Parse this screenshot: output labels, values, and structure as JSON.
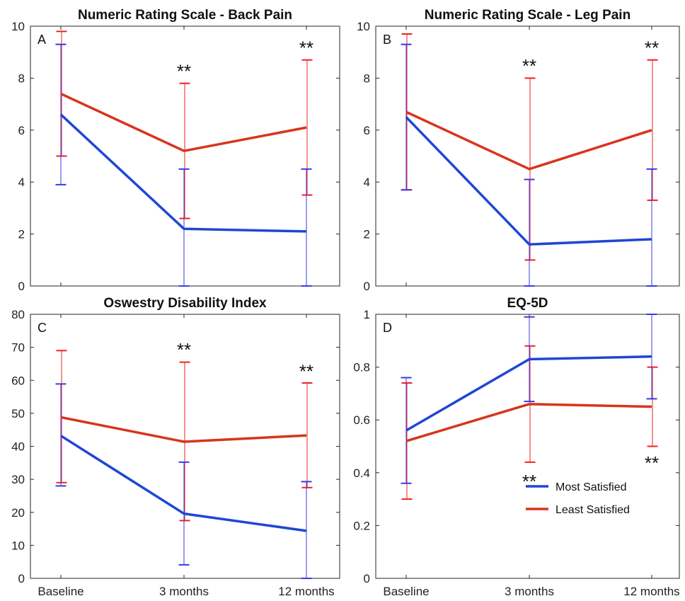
{
  "colors": {
    "most": "#1f47d4",
    "least": "#d8341c",
    "errMost": "#3a3ae8",
    "errLeast": "#ee2222"
  },
  "legend": {
    "most": "Most Satisfied",
    "least": "Least Satisfied",
    "position": "lower-right of panel D"
  },
  "chart_data": [
    {
      "type": "line",
      "panel_label": "A",
      "title": "Numeric Rating Scale - Back Pain",
      "categories": [
        "Baseline",
        "3 months",
        "12 months"
      ],
      "ylim": [
        0,
        10
      ],
      "yticks": [
        0,
        2,
        4,
        6,
        8,
        10
      ],
      "show_xticklabels": false,
      "series": [
        {
          "name": "Least Satisfied",
          "values": [
            7.4,
            5.2,
            6.1
          ],
          "err_low": [
            5.0,
            2.6,
            3.5
          ],
          "err_high": [
            9.8,
            7.8,
            8.7
          ]
        },
        {
          "name": "Most Satisfied",
          "values": [
            6.6,
            2.2,
            2.1
          ],
          "err_low": [
            3.9,
            0,
            0
          ],
          "err_high": [
            9.3,
            4.5,
            4.5
          ]
        }
      ],
      "annotations": [
        {
          "x": "3 months",
          "y": 8.3,
          "text": "**"
        },
        {
          "x": "12 months",
          "y": 9.2,
          "text": "**"
        }
      ]
    },
    {
      "type": "line",
      "panel_label": "B",
      "title": "Numeric Rating Scale - Leg Pain",
      "categories": [
        "Baseline",
        "3 months",
        "12 months"
      ],
      "ylim": [
        0,
        10
      ],
      "yticks": [
        0,
        2,
        4,
        6,
        8,
        10
      ],
      "show_xticklabels": false,
      "series": [
        {
          "name": "Least Satisfied",
          "values": [
            6.7,
            4.5,
            6.0
          ],
          "err_low": [
            3.7,
            1.0,
            3.3
          ],
          "err_high": [
            9.7,
            8.0,
            8.7
          ]
        },
        {
          "name": "Most Satisfied",
          "values": [
            6.5,
            1.6,
            1.8
          ],
          "err_low": [
            3.7,
            0,
            0
          ],
          "err_high": [
            9.3,
            4.1,
            4.5
          ]
        }
      ],
      "annotations": [
        {
          "x": "3 months",
          "y": 8.5,
          "text": "**"
        },
        {
          "x": "12 months",
          "y": 9.2,
          "text": "**"
        }
      ]
    },
    {
      "type": "line",
      "panel_label": "C",
      "title": "Oswestry Disability Index",
      "categories": [
        "Baseline",
        "3 months",
        "12 months"
      ],
      "ylim": [
        0,
        80
      ],
      "yticks": [
        0,
        10,
        20,
        30,
        40,
        50,
        60,
        70,
        80
      ],
      "show_xticklabels": true,
      "series": [
        {
          "name": "Least Satisfied",
          "values": [
            48.8,
            41.4,
            43.3
          ],
          "err_low": [
            29.0,
            17.5,
            27.5
          ],
          "err_high": [
            69.0,
            65.5,
            59.2
          ]
        },
        {
          "name": "Most Satisfied",
          "values": [
            43.2,
            19.6,
            14.4
          ],
          "err_low": [
            28.0,
            4.1,
            0
          ],
          "err_high": [
            58.9,
            35.2,
            29.3
          ]
        }
      ],
      "annotations": [
        {
          "x": "3 months",
          "y": 69.5,
          "text": "**"
        },
        {
          "x": "12 months",
          "y": 63.0,
          "text": "**"
        }
      ]
    },
    {
      "type": "line",
      "panel_label": "D",
      "title": "EQ-5D",
      "categories": [
        "Baseline",
        "3 months",
        "12 months"
      ],
      "ylim": [
        0,
        1
      ],
      "yticks": [
        0,
        0.2,
        0.4,
        0.6,
        0.8,
        1
      ],
      "ytick_labels": [
        "0",
        "0.2",
        "0.4",
        "0.6",
        "0.8",
        "1"
      ],
      "show_xticklabels": true,
      "series": [
        {
          "name": "Least Satisfied",
          "values": [
            0.52,
            0.66,
            0.65
          ],
          "err_low": [
            0.3,
            0.44,
            0.5
          ],
          "err_high": [
            0.74,
            0.88,
            0.8
          ]
        },
        {
          "name": "Most Satisfied",
          "values": [
            0.56,
            0.83,
            0.84
          ],
          "err_low": [
            0.36,
            0.67,
            0.68
          ],
          "err_high": [
            0.76,
            0.99,
            1.0
          ]
        }
      ],
      "annotations": [
        {
          "x": "3 months",
          "y": 0.37,
          "text": "**"
        },
        {
          "x": "12 months",
          "y": 0.44,
          "text": "**"
        }
      ]
    }
  ]
}
